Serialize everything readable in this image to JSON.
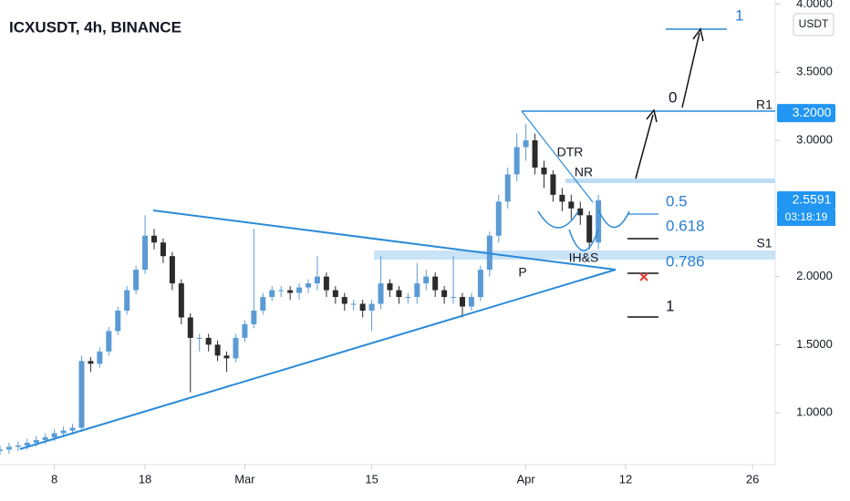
{
  "chart_data": {
    "type": "candlestick",
    "title": "ICXUSDT, 4h, BINANCE",
    "currency": "USDT",
    "up_color": "#5b9bd5",
    "down_color": "#2b2b2b",
    "x": [
      33,
      34,
      35,
      36,
      37,
      38,
      39,
      40,
      41,
      42,
      43,
      44,
      45,
      46,
      47,
      48,
      49,
      50,
      51,
      52,
      53,
      54,
      55,
      56,
      57,
      58,
      59,
      60,
      61,
      62,
      63,
      64,
      65,
      66,
      67,
      68,
      69,
      70,
      71,
      72,
      73,
      74,
      75,
      76,
      77,
      78,
      79,
      80,
      81,
      82,
      83,
      84,
      85,
      86,
      87,
      88,
      89,
      90,
      91,
      92,
      93,
      94,
      95,
      96,
      97,
      98,
      99
    ],
    "open": [
      0.72,
      0.73,
      0.75,
      0.76,
      0.78,
      0.8,
      0.82,
      0.85,
      0.87,
      0.89,
      1.38,
      1.36,
      1.45,
      1.6,
      1.75,
      1.9,
      2.05,
      2.3,
      2.25,
      2.15,
      1.95,
      1.7,
      1.55,
      1.55,
      1.5,
      1.42,
      1.4,
      1.55,
      1.65,
      1.75,
      1.85,
      1.9,
      1.9,
      1.88,
      1.92,
      1.95,
      2.0,
      1.9,
      1.85,
      1.8,
      1.8,
      1.75,
      1.8,
      1.95,
      1.9,
      1.85,
      1.85,
      1.95,
      2.0,
      1.9,
      1.85,
      1.85,
      1.78,
      1.85,
      2.05,
      2.3,
      2.55,
      2.75,
      2.95,
      3.0,
      2.8,
      2.75,
      2.6,
      2.55,
      2.5,
      2.45,
      2.25
    ],
    "high": [
      0.76,
      0.78,
      0.79,
      0.81,
      0.83,
      0.85,
      0.88,
      0.9,
      0.92,
      1.42,
      1.41,
      1.48,
      1.63,
      1.78,
      1.93,
      2.08,
      2.45,
      2.35,
      2.28,
      2.18,
      1.98,
      1.73,
      1.58,
      1.58,
      1.53,
      1.45,
      1.58,
      1.68,
      2.35,
      1.88,
      1.93,
      1.93,
      1.93,
      1.95,
      1.98,
      2.15,
      2.03,
      1.93,
      1.88,
      1.83,
      1.83,
      1.83,
      2.15,
      1.98,
      1.93,
      1.88,
      2.1,
      2.05,
      2.03,
      1.93,
      2.15,
      1.88,
      1.88,
      2.08,
      2.33,
      2.6,
      2.8,
      3.05,
      3.12,
      3.05,
      2.85,
      2.78,
      2.65,
      2.6,
      2.55,
      2.48,
      2.6
    ],
    "low": [
      0.69,
      0.7,
      0.72,
      0.73,
      0.75,
      0.77,
      0.79,
      0.82,
      0.84,
      0.86,
      1.3,
      1.33,
      1.42,
      1.57,
      1.72,
      1.87,
      2.02,
      2.2,
      2.1,
      1.9,
      1.65,
      1.15,
      1.45,
      1.45,
      1.38,
      1.3,
      1.37,
      1.52,
      1.62,
      1.72,
      1.82,
      1.85,
      1.83,
      1.83,
      1.88,
      1.9,
      1.85,
      1.8,
      1.75,
      1.75,
      1.7,
      1.6,
      1.76,
      1.85,
      1.8,
      1.8,
      1.8,
      1.9,
      1.85,
      1.8,
      1.8,
      1.7,
      1.75,
      1.82,
      2.0,
      2.25,
      2.5,
      2.7,
      2.85,
      2.75,
      2.65,
      2.55,
      2.48,
      2.42,
      2.38,
      2.2,
      2.2
    ],
    "close": [
      0.73,
      0.75,
      0.76,
      0.78,
      0.8,
      0.82,
      0.85,
      0.87,
      0.89,
      1.38,
      1.36,
      1.45,
      1.6,
      1.75,
      1.9,
      2.05,
      2.3,
      2.25,
      2.15,
      1.95,
      1.7,
      1.55,
      1.55,
      1.5,
      1.42,
      1.4,
      1.55,
      1.65,
      1.75,
      1.85,
      1.9,
      1.9,
      1.88,
      1.92,
      1.95,
      2.0,
      1.9,
      1.85,
      1.8,
      1.8,
      1.75,
      1.8,
      1.95,
      1.9,
      1.85,
      1.85,
      1.95,
      2.0,
      1.9,
      1.85,
      1.85,
      1.78,
      1.85,
      2.05,
      2.3,
      2.55,
      2.75,
      2.95,
      3.0,
      2.8,
      2.75,
      2.6,
      2.55,
      2.5,
      2.45,
      2.25,
      2.56
    ],
    "xlim": [
      33,
      118.5
    ],
    "xticks": [
      {
        "value": 39,
        "label": "8"
      },
      {
        "value": 49,
        "label": "18"
      },
      {
        "value": 60,
        "label": "Mar"
      },
      {
        "value": 74,
        "label": "15"
      },
      {
        "value": 91,
        "label": "Apr"
      },
      {
        "value": 102,
        "label": "12"
      },
      {
        "value": 116,
        "label": "26"
      }
    ],
    "ylim": [
      0.62,
      4.03
    ],
    "yticks": [
      {
        "value": 1,
        "label": "1.0000"
      },
      {
        "value": 1.5,
        "label": "1.5000"
      },
      {
        "value": 2,
        "label": "2.0000"
      },
      {
        "value": 2.5,
        "label": "2.5000"
      },
      {
        "value": 3,
        "label": "3.0000"
      },
      {
        "value": 3.5,
        "label": "3.5000"
      },
      {
        "value": 4,
        "label": "4.0000"
      }
    ],
    "price_labels": [
      {
        "value": 3.2,
        "label": "3.2000"
      },
      {
        "value": 2.5591,
        "label": "2.5591"
      }
    ],
    "countdown": "03:18:19",
    "annotations": [
      "DTR",
      "NR",
      "IH&S",
      "P",
      "R1",
      "S1"
    ],
    "fib_levels": [
      0.5,
      0.618,
      0.786,
      1
    ],
    "targets": [
      0,
      1
    ],
    "grid": false
  }
}
